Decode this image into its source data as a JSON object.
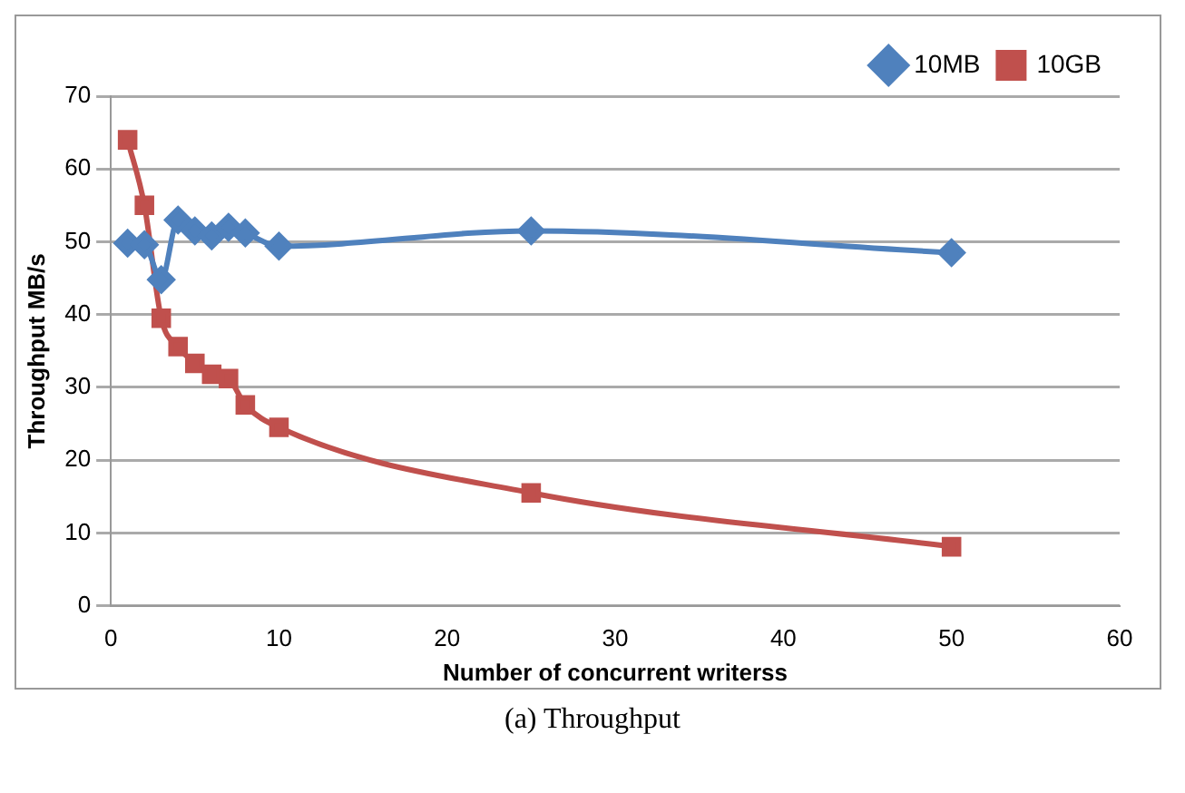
{
  "chart_data": {
    "type": "line",
    "xlabel": "Number of concurrent writerss",
    "ylabel": "Throughput MB/s",
    "x": [
      1,
      2,
      3,
      4,
      5,
      6,
      7,
      8,
      10,
      25,
      50
    ],
    "series": [
      {
        "name": "10MB",
        "color": "#4f81bd",
        "marker": "diamond",
        "values": [
          49.8,
          49.6,
          44.8,
          53,
          51.5,
          50.8,
          52,
          51.2,
          49.4,
          51.5,
          48.5
        ]
      },
      {
        "name": "10GB",
        "color": "#c0504d",
        "marker": "square",
        "values": [
          64,
          55,
          39.5,
          35.6,
          33.3,
          31.8,
          31.2,
          27.6,
          24.5,
          15.5,
          8.1
        ]
      }
    ],
    "xlim": [
      0,
      60
    ],
    "xticks": [
      0,
      10,
      20,
      30,
      40,
      50,
      60
    ],
    "ylim": [
      0,
      70
    ],
    "yticks": [
      0,
      10,
      20,
      30,
      40,
      50,
      60,
      70
    ],
    "grid": "y",
    "legend": "top right",
    "annotations": [
      "(a) Throughput"
    ]
  }
}
